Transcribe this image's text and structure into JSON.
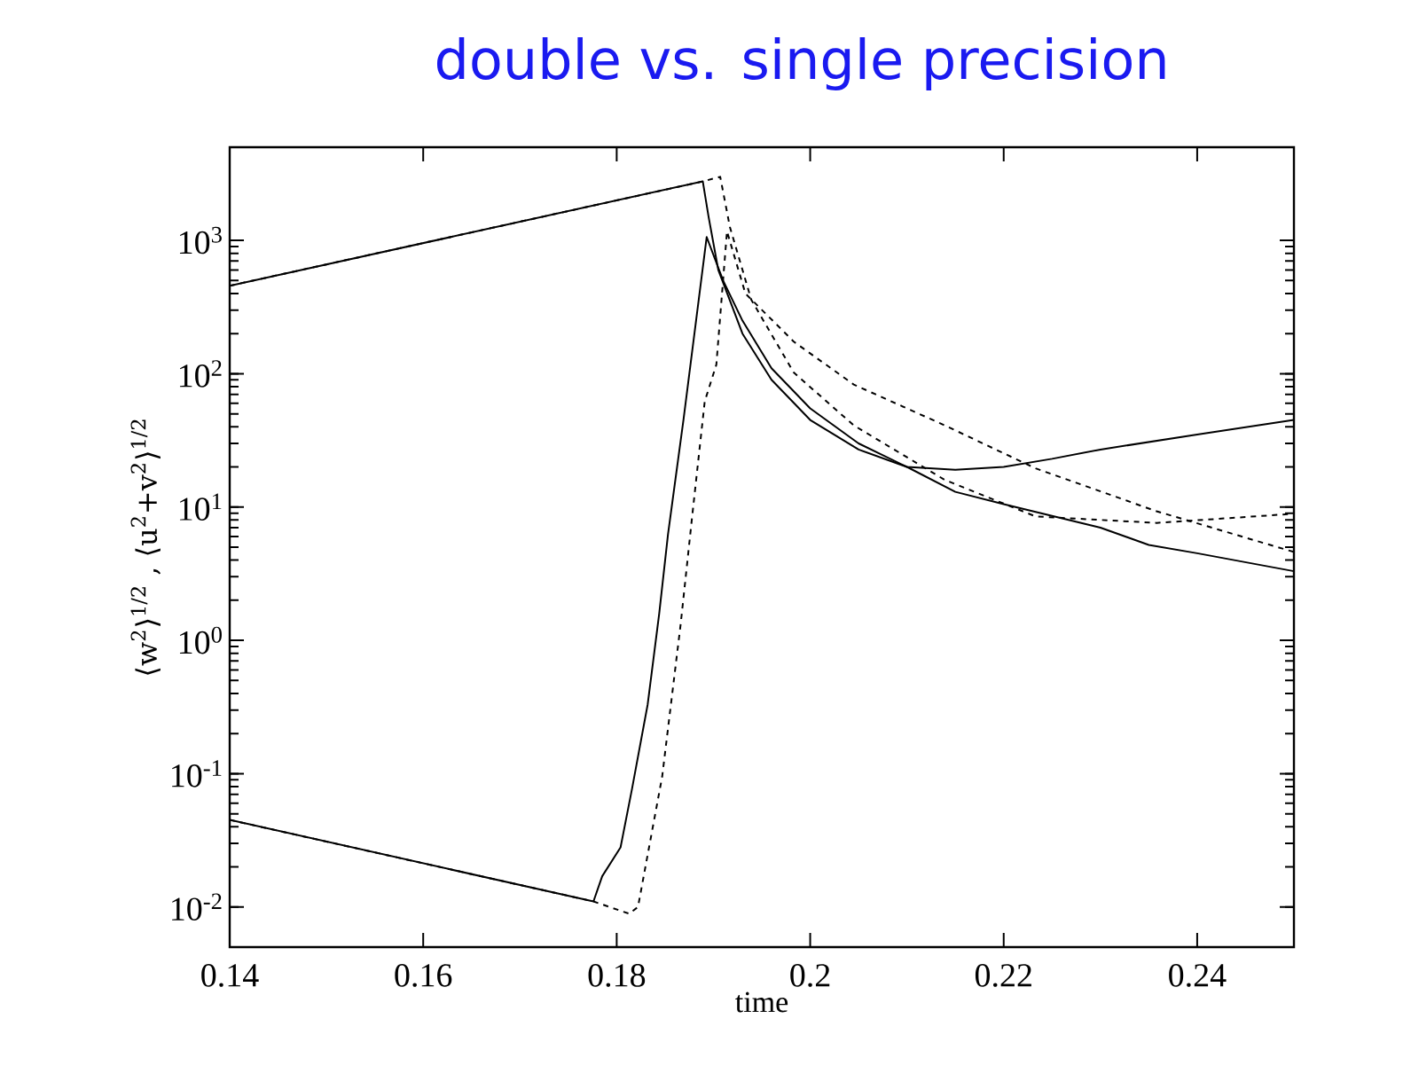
{
  "chart_data": {
    "type": "line",
    "title": "double vs. single precision",
    "xlabel": "time",
    "ylabel": "⟨w$^{2}$⟩$^{1/2}$ , ⟨u$^{2}$+v$^{2}$⟩$^{1/2}$",
    "log": "y",
    "xlim": [
      0.14,
      0.25
    ],
    "ylim": [
      0.005,
      5000
    ],
    "xticks": [
      0.14,
      0.16,
      0.18,
      0.2,
      0.22,
      0.24
    ],
    "yticks": [
      {
        "value": 0.01,
        "label": "10$^{-2}$"
      },
      {
        "value": 0.1,
        "label": "10$^{-1}$"
      },
      {
        "value": 1,
        "label": "10$^{0}$"
      },
      {
        "value": 10,
        "label": "10$^{1}$"
      },
      {
        "value": 100,
        "label": "10$^{2}$"
      },
      {
        "value": 1000,
        "label": "10$^{3}$"
      }
    ],
    "series": [
      {
        "color": "#000000",
        "line_style": "solid",
        "x": [
          0.14,
          0.1889,
          0.1895,
          0.1905,
          0.193,
          0.196,
          0.2,
          0.205,
          0.21,
          0.215,
          0.22,
          0.225,
          0.23,
          0.24,
          0.25
        ],
        "values": [
          457,
          2770,
          1500,
          600,
          200,
          90,
          45,
          27,
          20,
          19,
          20,
          23,
          27,
          35,
          45
        ]
      },
      {
        "color": "#000000",
        "line_style": "solid",
        "x": [
          0.14,
          0.1776,
          0.1785,
          0.1804,
          0.1816,
          0.1832,
          0.1844,
          0.1853,
          0.1869,
          0.1893,
          0.191,
          0.193,
          0.196,
          0.2,
          0.205,
          0.21,
          0.215,
          0.22,
          0.23,
          0.235,
          0.24,
          0.25
        ],
        "values": [
          0.045,
          0.011,
          0.017,
          0.028,
          0.078,
          0.33,
          1.6,
          6.2,
          45,
          1060,
          500,
          250,
          110,
          55,
          30,
          20,
          13,
          10.5,
          7,
          5.2,
          4.5,
          3.3
        ]
      },
      {
        "color": "#000000",
        "line_style": "dashed",
        "x": [
          0.14,
          0.1889,
          0.1907,
          0.1917,
          0.1939,
          0.1983,
          0.2045,
          0.2139,
          0.2233,
          0.2358,
          0.25
        ],
        "values": [
          457,
          2770,
          3000,
          1260,
          360,
          102,
          41,
          16,
          8.5,
          7.6,
          8.9
        ]
      },
      {
        "color": "#000000",
        "line_style": "dashed",
        "x": [
          0.14,
          0.1776,
          0.1813,
          0.1822,
          0.1847,
          0.1866,
          0.1878,
          0.1891,
          0.1903,
          0.1914,
          0.1933,
          0.1983,
          0.2045,
          0.2139,
          0.2233,
          0.2358,
          0.25
        ],
        "values": [
          0.045,
          0.011,
          0.0089,
          0.01,
          0.095,
          1.3,
          8.5,
          62,
          117,
          1170,
          400,
          174,
          83,
          41,
          19.5,
          9.3,
          4.6
        ]
      }
    ]
  }
}
